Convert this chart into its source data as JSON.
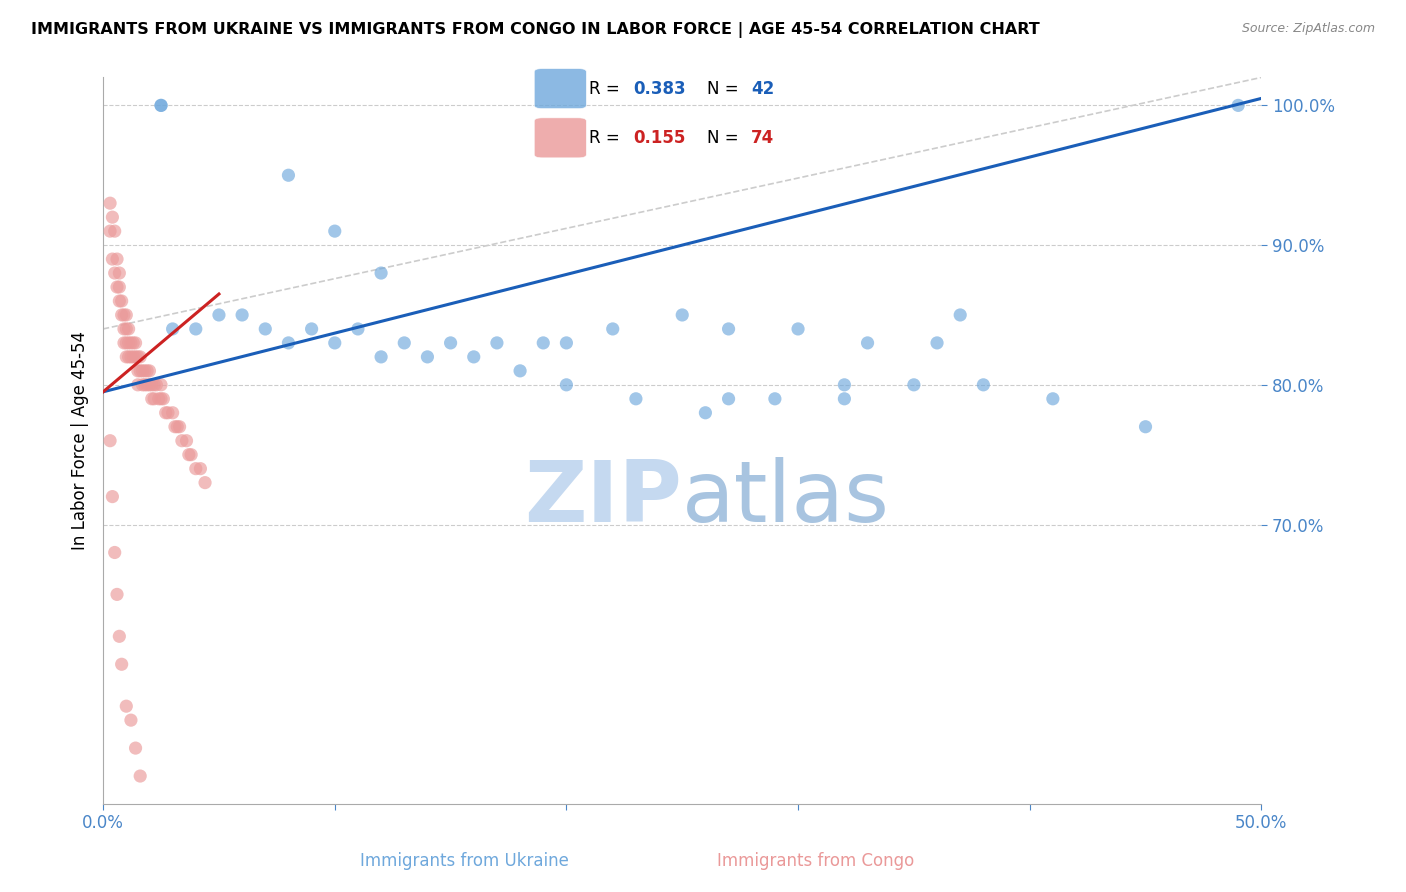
{
  "title": "IMMIGRANTS FROM UKRAINE VS IMMIGRANTS FROM CONGO IN LABOR FORCE | AGE 45-54 CORRELATION CHART",
  "source": "Source: ZipAtlas.com",
  "ylabel": "In Labor Force | Age 45-54",
  "x_label_ukraine": "Immigrants from Ukraine",
  "x_label_congo": "Immigrants from Congo",
  "xlim": [
    0.0,
    0.5
  ],
  "ylim": [
    0.5,
    1.02
  ],
  "ukraine_color": "#6fa8dc",
  "congo_color": "#ea9999",
  "trend_ukraine_color": "#1a5eb8",
  "trend_congo_color": "#cc2222",
  "diagonal_color": "#cccccc",
  "watermark_zip_color": "#c5d9f0",
  "watermark_atlas_color": "#a8c4e0",
  "ukraine_scatter_x": [
    0.025,
    0.025,
    0.08,
    0.1,
    0.12,
    0.05,
    0.07,
    0.09,
    0.11,
    0.13,
    0.15,
    0.17,
    0.19,
    0.2,
    0.22,
    0.25,
    0.27,
    0.3,
    0.33,
    0.36,
    0.03,
    0.04,
    0.06,
    0.08,
    0.1,
    0.12,
    0.14,
    0.16,
    0.18,
    0.2,
    0.23,
    0.26,
    0.29,
    0.32,
    0.35,
    0.38,
    0.41,
    0.45,
    0.49,
    0.27,
    0.32,
    0.37
  ],
  "ukraine_scatter_y": [
    1.0,
    1.0,
    0.95,
    0.91,
    0.88,
    0.85,
    0.84,
    0.84,
    0.84,
    0.83,
    0.83,
    0.83,
    0.83,
    0.83,
    0.84,
    0.85,
    0.84,
    0.84,
    0.83,
    0.83,
    0.84,
    0.84,
    0.85,
    0.83,
    0.83,
    0.82,
    0.82,
    0.82,
    0.81,
    0.8,
    0.79,
    0.78,
    0.79,
    0.79,
    0.8,
    0.8,
    0.79,
    0.77,
    1.0,
    0.79,
    0.8,
    0.85
  ],
  "congo_scatter_x": [
    0.003,
    0.003,
    0.004,
    0.004,
    0.005,
    0.005,
    0.006,
    0.006,
    0.007,
    0.007,
    0.007,
    0.008,
    0.008,
    0.009,
    0.009,
    0.009,
    0.01,
    0.01,
    0.01,
    0.01,
    0.011,
    0.011,
    0.011,
    0.012,
    0.012,
    0.013,
    0.013,
    0.014,
    0.014,
    0.015,
    0.015,
    0.015,
    0.016,
    0.016,
    0.017,
    0.017,
    0.018,
    0.018,
    0.019,
    0.019,
    0.02,
    0.02,
    0.021,
    0.021,
    0.022,
    0.022,
    0.023,
    0.024,
    0.025,
    0.025,
    0.026,
    0.027,
    0.028,
    0.03,
    0.031,
    0.032,
    0.033,
    0.034,
    0.036,
    0.037,
    0.038,
    0.04,
    0.042,
    0.044,
    0.003,
    0.004,
    0.005,
    0.006,
    0.007,
    0.008,
    0.01,
    0.012,
    0.014,
    0.016
  ],
  "congo_scatter_y": [
    0.93,
    0.91,
    0.92,
    0.89,
    0.91,
    0.88,
    0.89,
    0.87,
    0.88,
    0.86,
    0.87,
    0.86,
    0.85,
    0.85,
    0.84,
    0.83,
    0.85,
    0.84,
    0.83,
    0.82,
    0.84,
    0.83,
    0.82,
    0.83,
    0.82,
    0.83,
    0.82,
    0.83,
    0.82,
    0.82,
    0.81,
    0.8,
    0.82,
    0.81,
    0.81,
    0.8,
    0.81,
    0.8,
    0.81,
    0.8,
    0.81,
    0.8,
    0.8,
    0.79,
    0.8,
    0.79,
    0.8,
    0.79,
    0.8,
    0.79,
    0.79,
    0.78,
    0.78,
    0.78,
    0.77,
    0.77,
    0.77,
    0.76,
    0.76,
    0.75,
    0.75,
    0.74,
    0.74,
    0.73,
    0.76,
    0.72,
    0.68,
    0.65,
    0.62,
    0.6,
    0.57,
    0.56,
    0.54,
    0.52
  ]
}
